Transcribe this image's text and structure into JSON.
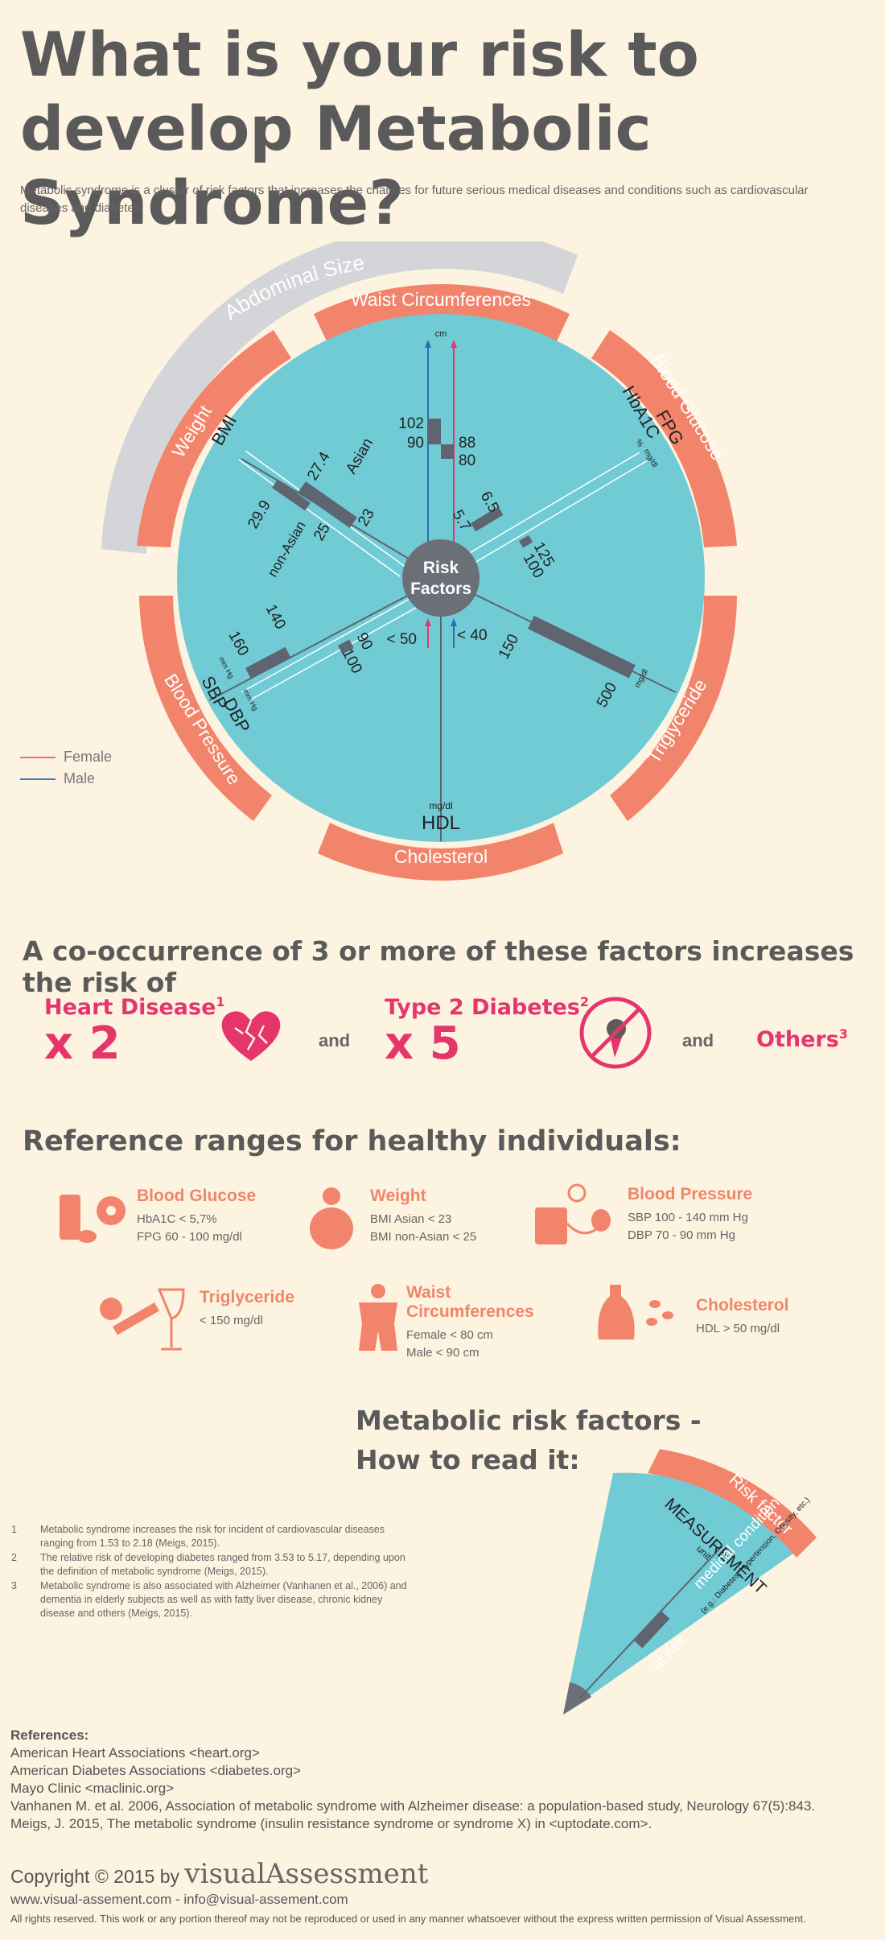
{
  "title": "What is your risk to develop Metabolic Syndrome?",
  "intro": "Metabolic syndrome is a cluster of risk factors that increases the chances for future serious medical diseases and conditions such as cardiovascular diseases and diabetes.",
  "colors": {
    "teal": "#70cbd5",
    "salmon": "#f2846b",
    "grey": "#6b6f78",
    "pink": "#e5366b",
    "blue": "#2a6db5",
    "female": "#e56a8e",
    "male": "#3c7ac0",
    "background": "#fdf3e1"
  },
  "wheel": {
    "center": [
      "Risk",
      "Factors"
    ],
    "outer_label": "Abdominal Size",
    "segments": [
      "Waist Circumferences",
      "Blood Glucose",
      "Triglyceride",
      "Cholesterol",
      "Blood Pressure",
      "Weight"
    ],
    "waist": {
      "unit": "cm",
      "male": "102",
      "male2": "90",
      "female": "88",
      "female2": "80"
    },
    "glucose": {
      "label1": "HbA1C",
      "label2": "FPG",
      "unit1": "%",
      "unit2": "mg/dl",
      "v1": "6.5",
      "v2": "5.7",
      "v3": "125",
      "v4": "100"
    },
    "triglyceride": {
      "unit": "mg/dl",
      "v1": "150",
      "v2": "500"
    },
    "hdl": {
      "label": "HDL",
      "unit": "mg/dl",
      "v1": "< 50",
      "v2": "< 40"
    },
    "bp": {
      "label1": "SBP",
      "label2": "DBP",
      "unit": "mm Hg",
      "v1": "140",
      "v2": "160",
      "v3": "90",
      "v4": "100"
    },
    "bmi": {
      "label": "BMI",
      "asian": "Asian",
      "non_asian": "non-Asian",
      "v1": "27.4",
      "v2": "23",
      "v3": "29.9",
      "v4": "25"
    }
  },
  "legend": {
    "female": "Female",
    "male": "Male"
  },
  "cooccurrence": {
    "title": "A co-occurrence of 3 or more of these factors increases the risk of",
    "heart": {
      "name": "Heart Disease",
      "sup": "1",
      "mult": "x 2"
    },
    "and1": "and",
    "diabetes": {
      "name": "Type 2 Diabetes",
      "sup": "2",
      "mult": "x 5"
    },
    "and2": "and",
    "others": {
      "name": "Others",
      "sup": "3"
    },
    "icons": [
      "broken-heart-icon",
      "no-ice-cream-icon"
    ]
  },
  "reference": {
    "title": "Reference ranges for healthy individuals:",
    "items": [
      {
        "name": "Blood Glucose",
        "values": [
          "HbA1C < 5,7%",
          "FPG 60 - 100 mg/dl"
        ],
        "icon": "sweets-icon"
      },
      {
        "name": "Weight",
        "values": [
          "BMI Asian < 23",
          "BMI non-Asian < 25"
        ],
        "icon": "person-weight-icon"
      },
      {
        "name": "Blood Pressure",
        "values": [
          "SBP 100 - 140 mm Hg",
          "DBP 70 - 90 mm Hg"
        ],
        "icon": "blood-pressure-icon"
      },
      {
        "name": "Triglyceride",
        "values": [
          "< 150 mg/dl"
        ],
        "icon": "smoking-wine-icon"
      },
      {
        "name": "Waist Circumferences",
        "values": [
          "Female < 80 cm",
          "Male < 90 cm"
        ],
        "icon": "waist-icon"
      },
      {
        "name": "Cholesterol",
        "values": [
          "HDL > 50 mg/dl"
        ],
        "icon": "oil-olive-icon"
      }
    ]
  },
  "howto": {
    "title_line1": "Metabolic risk factors -",
    "title_line2": "How to read it:",
    "risk_factor": "Risk factor",
    "measurement": "MEASUREMENT",
    "unit": "unit",
    "medical_condition": "medical condition",
    "eg": "(e.g.: Diabetes, Hypertension, Obesity, etc.)",
    "at_risk": "at risk"
  },
  "footnotes": [
    {
      "n": "1",
      "text": "Metabolic syndrome increases the risk for incident of cardiovascular diseases ranging from 1.53 to 2.18 (Meigs, 2015)."
    },
    {
      "n": "2",
      "text": "The relative risk of developing diabetes ranged from 3.53 to 5.17, depending upon the definition of metabolic syndrome (Meigs, 2015)."
    },
    {
      "n": "3",
      "text": "Metabolic syndrome is also associated with Alzheimer (Vanhanen et al., 2006) and dementia in elderly subjects as well as with fatty liver disease, chronic kidney disease and others (Meigs, 2015)."
    }
  ],
  "references": {
    "heading": "References:",
    "items": [
      "American Heart Associations <heart.org>",
      "American Diabetes Associations <diabetes.org>",
      "Mayo Clinic <maclinic.org>",
      "Vanhanen M. et al. 2006, Association of metabolic syndrome with Alzheimer disease: a population-based study, Neurology 67(5):843.",
      "Meigs, J. 2015, The metabolic syndrome (insulin resistance syndrome or syndrome X) in <uptodate.com>."
    ]
  },
  "footer": {
    "copyright": "Copyright © 2015 by",
    "brand1": "visual",
    "brand2": "Assessment",
    "contact": "www.visual-assement.com - info@visual-assement.com",
    "rights": "All rights reserved. This work or any portion thereof may not be reproduced or used in any manner whatsoever without the express written permission of Visual Assessment."
  }
}
